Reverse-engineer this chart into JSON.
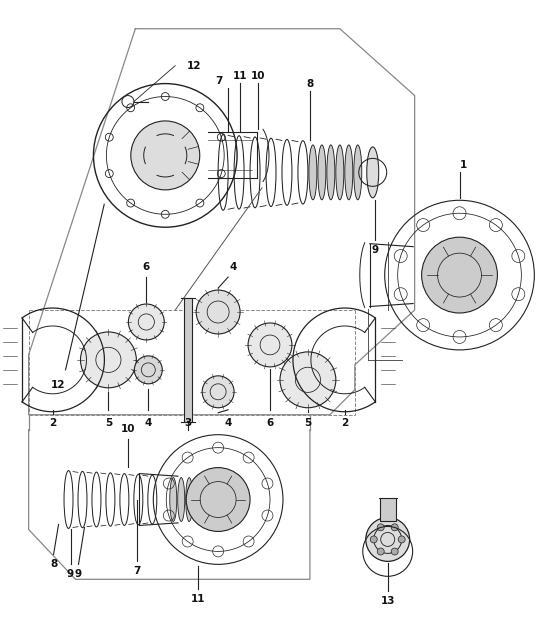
{
  "bg_color": "#ffffff",
  "line_color": "#222222",
  "label_color": "#111111",
  "fig_width": 5.45,
  "fig_height": 6.28,
  "dpi": 100
}
